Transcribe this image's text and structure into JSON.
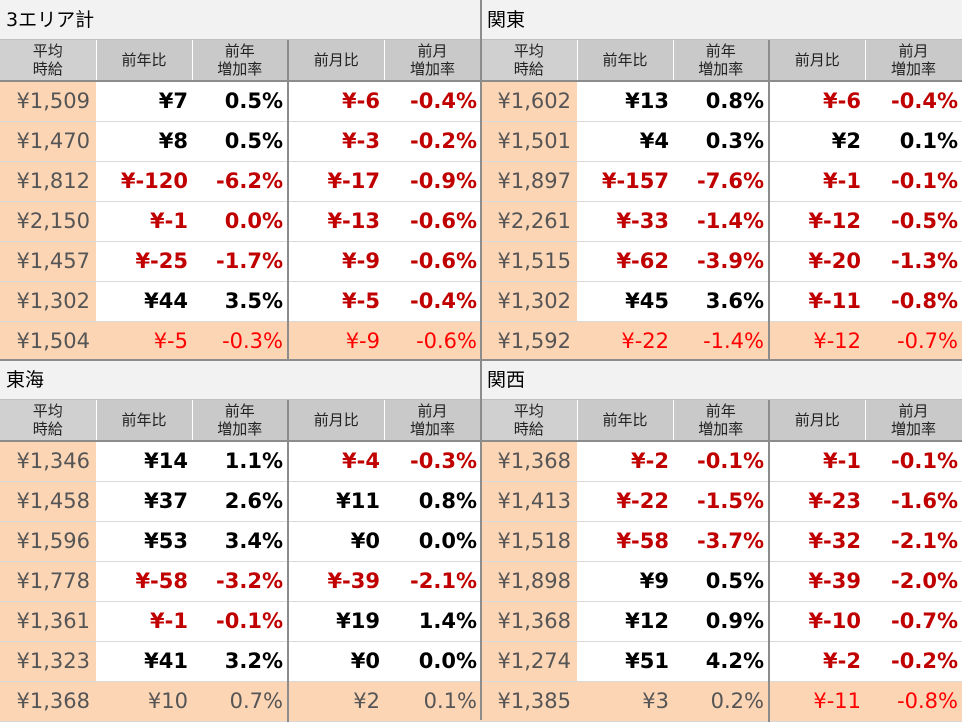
{
  "headers": {
    "avg_line1": "平均",
    "avg_line2": "時給",
    "yoy": "前年比",
    "yoy_rate_line1": "前年",
    "yoy_rate_line2": "増加率",
    "mom": "前月比",
    "mom_rate_line1": "前月",
    "mom_rate_line2": "増加率"
  },
  "panels": [
    {
      "title": "3エリア計",
      "rows": [
        [
          "¥1,509",
          "¥7",
          "0.5%",
          "¥-6",
          "-0.4%"
        ],
        [
          "¥1,470",
          "¥8",
          "0.5%",
          "¥-3",
          "-0.2%"
        ],
        [
          "¥1,812",
          "¥-120",
          "-6.2%",
          "¥-17",
          "-0.9%"
        ],
        [
          "¥2,150",
          "¥-1",
          "0.0%",
          "¥-13",
          "-0.6%"
        ],
        [
          "¥1,457",
          "¥-25",
          "-1.7%",
          "¥-9",
          "-0.6%"
        ],
        [
          "¥1,302",
          "¥44",
          "3.5%",
          "¥-5",
          "-0.4%"
        ],
        [
          "¥1,504",
          "¥-5",
          "-0.3%",
          "¥-9",
          "-0.6%"
        ]
      ],
      "neg": [
        [
          false,
          false,
          false,
          true,
          true
        ],
        [
          false,
          false,
          false,
          true,
          true
        ],
        [
          false,
          true,
          true,
          true,
          true
        ],
        [
          false,
          true,
          true,
          true,
          true
        ],
        [
          false,
          true,
          true,
          true,
          true
        ],
        [
          false,
          false,
          false,
          true,
          true
        ],
        [
          false,
          true,
          true,
          true,
          true
        ]
      ]
    },
    {
      "title": "関東",
      "rows": [
        [
          "¥1,602",
          "¥13",
          "0.8%",
          "¥-6",
          "-0.4%"
        ],
        [
          "¥1,501",
          "¥4",
          "0.3%",
          "¥2",
          "0.1%"
        ],
        [
          "¥1,897",
          "¥-157",
          "-7.6%",
          "¥-1",
          "-0.1%"
        ],
        [
          "¥2,261",
          "¥-33",
          "-1.4%",
          "¥-12",
          "-0.5%"
        ],
        [
          "¥1,515",
          "¥-62",
          "-3.9%",
          "¥-20",
          "-1.3%"
        ],
        [
          "¥1,302",
          "¥45",
          "3.6%",
          "¥-11",
          "-0.8%"
        ],
        [
          "¥1,592",
          "¥-22",
          "-1.4%",
          "¥-12",
          "-0.7%"
        ]
      ],
      "neg": [
        [
          false,
          false,
          false,
          true,
          true
        ],
        [
          false,
          false,
          false,
          false,
          false
        ],
        [
          false,
          true,
          true,
          true,
          true
        ],
        [
          false,
          true,
          true,
          true,
          true
        ],
        [
          false,
          true,
          true,
          true,
          true
        ],
        [
          false,
          false,
          false,
          true,
          true
        ],
        [
          false,
          true,
          true,
          true,
          true
        ]
      ]
    },
    {
      "title": "東海",
      "rows": [
        [
          "¥1,346",
          "¥14",
          "1.1%",
          "¥-4",
          "-0.3%"
        ],
        [
          "¥1,458",
          "¥37",
          "2.6%",
          "¥11",
          "0.8%"
        ],
        [
          "¥1,596",
          "¥53",
          "3.4%",
          "¥0",
          "0.0%"
        ],
        [
          "¥1,778",
          "¥-58",
          "-3.2%",
          "¥-39",
          "-2.1%"
        ],
        [
          "¥1,361",
          "¥-1",
          "-0.1%",
          "¥19",
          "1.4%"
        ],
        [
          "¥1,323",
          "¥41",
          "3.2%",
          "¥0",
          "0.0%"
        ],
        [
          "¥1,368",
          "¥10",
          "0.7%",
          "¥2",
          "0.1%"
        ]
      ],
      "neg": [
        [
          false,
          false,
          false,
          true,
          true
        ],
        [
          false,
          false,
          false,
          false,
          false
        ],
        [
          false,
          false,
          false,
          false,
          false
        ],
        [
          false,
          true,
          true,
          true,
          true
        ],
        [
          false,
          true,
          true,
          false,
          false
        ],
        [
          false,
          false,
          false,
          false,
          false
        ],
        [
          false,
          false,
          false,
          false,
          false
        ]
      ]
    },
    {
      "title": "関西",
      "rows": [
        [
          "¥1,368",
          "¥-2",
          "-0.1%",
          "¥-1",
          "-0.1%"
        ],
        [
          "¥1,413",
          "¥-22",
          "-1.5%",
          "¥-23",
          "-1.6%"
        ],
        [
          "¥1,518",
          "¥-58",
          "-3.7%",
          "¥-32",
          "-2.1%"
        ],
        [
          "¥1,898",
          "¥9",
          "0.5%",
          "¥-39",
          "-2.0%"
        ],
        [
          "¥1,368",
          "¥12",
          "0.9%",
          "¥-10",
          "-0.7%"
        ],
        [
          "¥1,274",
          "¥51",
          "4.2%",
          "¥-2",
          "-0.2%"
        ],
        [
          "¥1,385",
          "¥3",
          "0.2%",
          "¥-11",
          "-0.8%"
        ]
      ],
      "neg": [
        [
          false,
          true,
          true,
          true,
          true
        ],
        [
          false,
          true,
          true,
          true,
          true
        ],
        [
          false,
          true,
          true,
          true,
          true
        ],
        [
          false,
          false,
          false,
          true,
          true
        ],
        [
          false,
          false,
          false,
          true,
          true
        ],
        [
          false,
          false,
          false,
          true,
          true
        ],
        [
          false,
          false,
          false,
          true,
          true
        ]
      ]
    }
  ]
}
